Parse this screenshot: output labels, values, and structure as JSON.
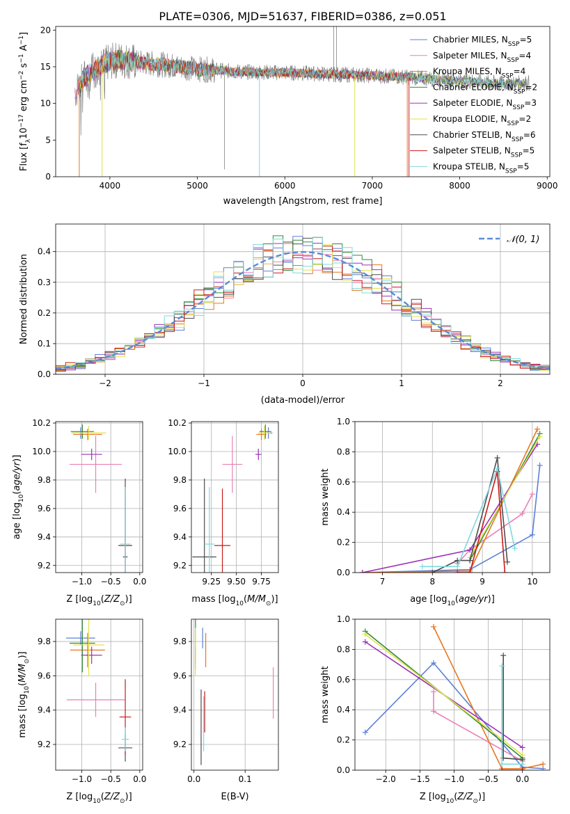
{
  "figure_title": "PLATE=0306, MJD=51637, FIBERID=0386, z=0.051",
  "models": [
    {
      "name": "Chabrier MILES",
      "nssp": "5",
      "color": "#5b7fd8"
    },
    {
      "name": "Salpeter MILES",
      "nssp": "4",
      "color": "#ea7fb5"
    },
    {
      "name": "Kroupa MILES",
      "nssp": "4",
      "color": "#e8761e"
    },
    {
      "name": "Chabrier ELODIE",
      "nssp": "2",
      "color": "#2e8b3a"
    },
    {
      "name": "Salpeter ELODIE",
      "nssp": "3",
      "color": "#9b30b8"
    },
    {
      "name": "Kroupa ELODIE",
      "nssp": "2",
      "color": "#e3e04a"
    },
    {
      "name": "Chabrier STELIB",
      "nssp": "6",
      "color": "#4d4d4d"
    },
    {
      "name": "Salpeter STELIB",
      "nssp": "5",
      "color": "#c81a1a"
    },
    {
      "name": "Kroupa STELIB",
      "nssp": "5",
      "color": "#7fd8dc"
    }
  ],
  "legend_labels": {
    "nssp_prefix": "N",
    "nssp_sub": "SSP",
    "normal_label": "𝒩(0, 1)"
  },
  "chart_data": [
    {
      "id": "spectrum",
      "type": "line",
      "xlabel": "wavelength [Angstrom, rest frame]",
      "ylabel": "Flux [fλ10⁻¹⁷ erg cm⁻² s⁻¹ A⁻¹]",
      "xlim": [
        3380,
        9030
      ],
      "ylim": [
        0,
        20.5
      ],
      "xticks": [
        4000,
        5000,
        6000,
        7000,
        8000,
        9000
      ],
      "yticks": [
        0,
        5,
        10,
        15,
        20
      ],
      "grid": false,
      "legend": "top-right",
      "data_color": "#808080",
      "data_range": [
        3600,
        8800
      ],
      "continuum": [
        [
          3600,
          11.5
        ],
        [
          3700,
          13.5
        ],
        [
          3900,
          15.2
        ],
        [
          4100,
          16.0
        ],
        [
          4300,
          15.6
        ],
        [
          4600,
          15.3
        ],
        [
          5000,
          14.7
        ],
        [
          5500,
          14.3
        ],
        [
          6000,
          14.2
        ],
        [
          6500,
          14.0
        ],
        [
          7000,
          13.8
        ],
        [
          7400,
          13.6
        ],
        [
          8000,
          13.1
        ],
        [
          8500,
          12.7
        ],
        [
          8800,
          12.8
        ]
      ],
      "model_ranges": [
        [
          3600,
          7460
        ],
        [
          3600,
          7460
        ],
        [
          3640,
          7420
        ],
        [
          3640,
          8740
        ],
        [
          3640,
          8740
        ],
        [
          3640,
          8740
        ],
        [
          3640,
          8740
        ],
        [
          3640,
          7460
        ],
        [
          3640,
          8740
        ]
      ],
      "drops": [
        {
          "model": 2,
          "x": 3650
        },
        {
          "model": 5,
          "x": 3910
        },
        {
          "model": 8,
          "x": 5710
        },
        {
          "model": 5,
          "x": 6800
        },
        {
          "model": 2,
          "x": 7400
        },
        {
          "model": 7,
          "x": 7420
        }
      ],
      "spikes": [
        {
          "x": 5310,
          "y": 1.0
        },
        {
          "x": 6560,
          "y": 21
        },
        {
          "x": 6590,
          "y": 20.5
        }
      ]
    },
    {
      "id": "residuals",
      "type": "histogram",
      "xlabel": "(data-model)/error",
      "ylabel": "Normed distribution",
      "xlim": [
        -2.5,
        2.5
      ],
      "ylim": [
        0,
        0.49
      ],
      "xticks": [
        -2,
        -1,
        0,
        1,
        2
      ],
      "yticks": [
        0.0,
        0.1,
        0.2,
        0.3,
        0.4
      ],
      "grid": true,
      "legend": "top-right",
      "bin_width": 0.1,
      "reference_curve": "normal(0,1)",
      "reference_color": "#5b8ad8"
    },
    {
      "id": "age-vs-Z",
      "type": "scatter",
      "xlabel": "Z [log10(Z/Z⊙)]",
      "ylabel": "age [log10(age/yr)]",
      "xlim": [
        -1.45,
        0.05
      ],
      "ylim": [
        9.15,
        10.21
      ],
      "xticks": [
        -1.0,
        -0.5,
        0.0
      ],
      "yticks": [
        9.2,
        9.4,
        9.6,
        9.8,
        10.0,
        10.2
      ],
      "grid": true,
      "points": [
        {
          "model": 0,
          "x": -1.02,
          "xerr": 0.15,
          "y": 10.13,
          "yerr": 0.04
        },
        {
          "model": 1,
          "x": -0.76,
          "xerr": 0.45,
          "y": 9.91,
          "yerr": 0.2
        },
        {
          "model": 2,
          "x": -0.9,
          "xerr": 0.25,
          "y": 10.12,
          "yerr": 0.04
        },
        {
          "model": 3,
          "x": -0.99,
          "xerr": 0.2,
          "y": 10.14,
          "yerr": 0.05
        },
        {
          "model": 4,
          "x": -0.83,
          "xerr": 0.18,
          "y": 9.98,
          "yerr": 0.04
        },
        {
          "model": 5,
          "x": -0.88,
          "xerr": 0.3,
          "y": 10.13,
          "yerr": 0.05
        },
        {
          "model": 6,
          "x": -0.25,
          "xerr": 0.04,
          "y": 9.26,
          "yerr": 0.55
        },
        {
          "model": 7,
          "x": -0.25,
          "xerr": 0.12,
          "y": 9.34,
          "yerr": 0.4
        },
        {
          "model": 8,
          "x": -0.25,
          "xerr": 0.09,
          "y": 9.35,
          "yerr": 0.4
        }
      ]
    },
    {
      "id": "age-vs-mass",
      "type": "scatter",
      "xlabel": "mass [log10(M/M⊙)]",
      "ylabel": "",
      "xlim": [
        9.05,
        9.92
      ],
      "ylim": [
        9.15,
        10.21
      ],
      "xticks": [
        9.25,
        9.5,
        9.75
      ],
      "yticks": [
        9.2,
        9.4,
        9.6,
        9.8,
        10.0,
        10.2
      ],
      "grid": true,
      "points": [
        {
          "model": 0,
          "x": 9.82,
          "xerr": 0.04,
          "y": 10.13,
          "yerr": 0.04
        },
        {
          "model": 1,
          "x": 9.46,
          "xerr": 0.1,
          "y": 9.91,
          "yerr": 0.2
        },
        {
          "model": 2,
          "x": 9.75,
          "xerr": 0.05,
          "y": 10.12,
          "yerr": 0.04
        },
        {
          "model": 3,
          "x": 9.79,
          "xerr": 0.06,
          "y": 10.14,
          "yerr": 0.05
        },
        {
          "model": 4,
          "x": 9.72,
          "xerr": 0.03,
          "y": 9.98,
          "yerr": 0.04
        },
        {
          "model": 5,
          "x": 9.78,
          "xerr": 0.06,
          "y": 10.13,
          "yerr": 0.05
        },
        {
          "model": 6,
          "x": 9.18,
          "xerr": 0.12,
          "y": 9.26,
          "yerr": 0.55
        },
        {
          "model": 7,
          "x": 9.36,
          "xerr": 0.08,
          "y": 9.34,
          "yerr": 0.4
        },
        {
          "model": 8,
          "x": 9.23,
          "xerr": 0.05,
          "y": 9.35,
          "yerr": 0.4
        }
      ]
    },
    {
      "id": "weight-vs-age",
      "type": "line",
      "xlabel": "age [log10(age/yr)]",
      "ylabel": "mass weight",
      "xlim": [
        6.45,
        10.35
      ],
      "ylim": [
        0,
        1.0
      ],
      "xticks": [
        7,
        8,
        9,
        10
      ],
      "yticks": [
        0.0,
        0.2,
        0.4,
        0.6,
        0.8,
        1.0
      ],
      "grid": true,
      "series": [
        {
          "model": 0,
          "x": [
            6.6,
            8.75,
            10.0,
            10.15
          ],
          "y": [
            0.0,
            0.02,
            0.25,
            0.71
          ]
        },
        {
          "model": 1,
          "x": [
            8.5,
            8.75,
            9.8,
            10.0
          ],
          "y": [
            0.06,
            0.15,
            0.39,
            0.52
          ]
        },
        {
          "model": 2,
          "x": [
            6.6,
            8.75,
            10.1
          ],
          "y": [
            0.0,
            0.01,
            0.95
          ]
        },
        {
          "model": 3,
          "x": [
            8.75,
            10.15
          ],
          "y": [
            0.08,
            0.92
          ]
        },
        {
          "model": 4,
          "x": [
            6.6,
            8.75,
            10.1
          ],
          "y": [
            0.0,
            0.15,
            0.85
          ]
        },
        {
          "model": 5,
          "x": [
            8.75,
            10.15
          ],
          "y": [
            0.1,
            0.9
          ]
        },
        {
          "model": 6,
          "x": [
            8.0,
            8.5,
            8.75,
            9.3,
            9.5
          ],
          "y": [
            0.0,
            0.08,
            0.08,
            0.76,
            0.07
          ]
        },
        {
          "model": 7,
          "x": [
            8.5,
            8.75,
            9.3,
            9.45
          ],
          "y": [
            0.0,
            0.0,
            0.67,
            0.0
          ]
        },
        {
          "model": 8,
          "x": [
            7.8,
            8.5,
            9.3,
            9.65
          ],
          "y": [
            0.04,
            0.04,
            0.69,
            0.16
          ]
        }
      ]
    },
    {
      "id": "mass-vs-Z",
      "type": "scatter",
      "xlabel": "Z [log10(Z/Z⊙)]",
      "ylabel": "mass [log10(M/M⊙)]",
      "xlim": [
        -1.45,
        0.05
      ],
      "ylim": [
        9.05,
        9.93
      ],
      "xticks": [
        -1.0,
        -0.5,
        0.0
      ],
      "yticks": [
        9.2,
        9.4,
        9.6,
        9.8
      ],
      "grid": true,
      "points": [
        {
          "model": 0,
          "x": -1.02,
          "xerr": 0.25,
          "y": 9.82,
          "yerr": 0.04
        },
        {
          "model": 1,
          "x": -0.76,
          "xerr": 0.5,
          "y": 9.46,
          "yerr": 0.1
        },
        {
          "model": 2,
          "x": -0.9,
          "xerr": 0.3,
          "y": 9.75,
          "yerr": 0.1
        },
        {
          "model": 3,
          "x": -0.99,
          "xerr": 0.22,
          "y": 9.79,
          "yerr": 0.17
        },
        {
          "model": 4,
          "x": -0.83,
          "xerr": 0.18,
          "y": 9.72,
          "yerr": 0.05
        },
        {
          "model": 5,
          "x": -0.88,
          "xerr": 0.27,
          "y": 9.78,
          "yerr": 0.18
        },
        {
          "model": 6,
          "x": -0.25,
          "xerr": 0.12,
          "y": 9.18,
          "yerr": 0.08
        },
        {
          "model": 7,
          "x": -0.25,
          "xerr": 0.1,
          "y": 9.36,
          "yerr": 0.22
        },
        {
          "model": 8,
          "x": -0.25,
          "xerr": 0.06,
          "y": 9.23,
          "yerr": 0.07
        }
      ]
    },
    {
      "id": "mass-vs-EBV",
      "type": "scatter",
      "xlabel": "E(B-V)",
      "ylabel": "",
      "xlim": [
        -0.005,
        0.165
      ],
      "ylim": [
        9.05,
        9.93
      ],
      "xticks": [
        0.0,
        0.1
      ],
      "yticks": [
        9.2,
        9.4,
        9.6,
        9.8
      ],
      "grid": true,
      "points": [
        {
          "model": 0,
          "x": 0.017,
          "xerr": 0.0,
          "y": 9.82,
          "yerr": 0.06
        },
        {
          "model": 1,
          "x": 0.155,
          "xerr": 0.0,
          "y": 9.5,
          "yerr": 0.15
        },
        {
          "model": 2,
          "x": 0.023,
          "xerr": 0.0,
          "y": 9.75,
          "yerr": 0.1
        },
        {
          "model": 3,
          "x": 0.003,
          "xerr": 0.0,
          "y": 9.79,
          "yerr": 0.15
        },
        {
          "model": 4,
          "x": 0.003,
          "xerr": 0.0,
          "y": 9.72,
          "yerr": 0.05
        },
        {
          "model": 5,
          "x": 0.003,
          "xerr": 0.0,
          "y": 9.74,
          "yerr": 0.14
        },
        {
          "model": 6,
          "x": 0.014,
          "xerr": 0.0,
          "y": 9.3,
          "yerr": 0.22
        },
        {
          "model": 7,
          "x": 0.021,
          "xerr": 0.0,
          "y": 9.39,
          "yerr": 0.12
        },
        {
          "model": 8,
          "x": 0.019,
          "xerr": 0.0,
          "y": 9.32,
          "yerr": 0.16
        }
      ]
    },
    {
      "id": "weight-vs-Z",
      "type": "line",
      "xlabel": "Z [log10(Z/Z⊙)]",
      "ylabel": "mass weight",
      "xlim": [
        -2.45,
        0.4
      ],
      "ylim": [
        0,
        1.0
      ],
      "xticks": [
        -2.0,
        -1.5,
        -1.0,
        -0.5,
        0.0
      ],
      "yticks": [
        0.0,
        0.2,
        0.4,
        0.6,
        0.8,
        1.0
      ],
      "grid": true,
      "series": [
        {
          "model": 0,
          "x": [
            -2.3,
            -1.3,
            0.0,
            0.3
          ],
          "y": [
            0.25,
            0.71,
            0.02,
            0.01
          ]
        },
        {
          "model": 1,
          "x": [
            -1.3,
            -1.3,
            0.0
          ],
          "y": [
            0.52,
            0.39,
            0.06
          ]
        },
        {
          "model": 2,
          "x": [
            -1.3,
            -0.3,
            0.0,
            0.3
          ],
          "y": [
            0.95,
            0.01,
            0.01,
            0.04
          ]
        },
        {
          "model": 3,
          "x": [
            -2.3,
            0.0
          ],
          "y": [
            0.92,
            0.08
          ]
        },
        {
          "model": 4,
          "x": [
            -2.3,
            0.0
          ],
          "y": [
            0.85,
            0.15
          ]
        },
        {
          "model": 5,
          "x": [
            -2.3,
            0.0
          ],
          "y": [
            0.9,
            0.1
          ]
        },
        {
          "model": 6,
          "x": [
            -0.28,
            -0.28,
            0.0,
            0.0
          ],
          "y": [
            0.76,
            0.08,
            0.07,
            0.0
          ]
        },
        {
          "model": 7,
          "x": [
            -0.3,
            0.0
          ],
          "y": [
            0.0,
            0.0
          ]
        },
        {
          "model": 8,
          "x": [
            -0.3,
            -0.3,
            0.0
          ],
          "y": [
            0.69,
            0.04,
            0.04
          ]
        }
      ]
    }
  ]
}
